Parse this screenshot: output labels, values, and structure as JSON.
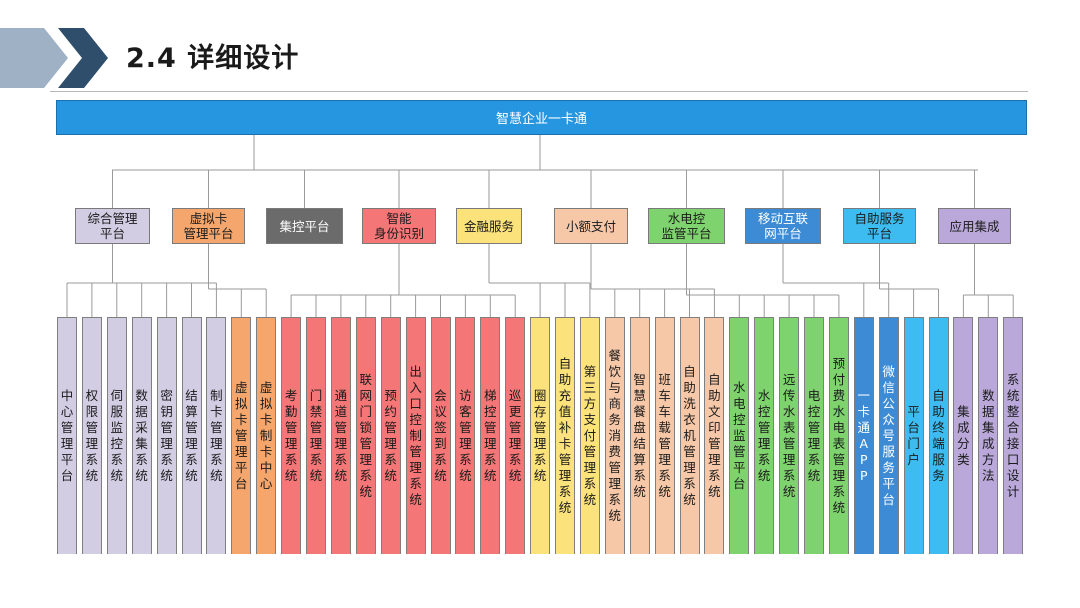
{
  "header": {
    "title": "2.4 详细设计"
  },
  "root": {
    "label": "智慧企业一卡通"
  },
  "colors": {
    "header_chevron_dark": "#2f4e6b",
    "header_chevron_light": "#9fb1c4",
    "root": "#2796e0",
    "lavender": "#d3cde4",
    "orange": "#f4a66d",
    "gray": "#6b6b6b",
    "red": "#f57676",
    "yellow": "#fbe27a",
    "peach": "#f7c8a8",
    "green": "#7fd36e",
    "steelblue": "#3c8bd4",
    "skyblue": "#3cbcf0",
    "purple": "#b9a8d9",
    "connector": "#9a9a9a"
  },
  "categories": [
    {
      "label": "综合管理\n平台",
      "color": "lavender"
    },
    {
      "label": "虚拟卡\n管理平台",
      "color": "orange"
    },
    {
      "label": "集控平台",
      "color": "gray"
    },
    {
      "label": "智能\n身份识别",
      "color": "red"
    },
    {
      "label": "金融服务",
      "color": "yellow"
    },
    {
      "label": "小额支付",
      "color": "peach"
    },
    {
      "label": "水电控\n监管平台",
      "color": "green"
    },
    {
      "label": "移动互联\n网平台",
      "color": "steelblue"
    },
    {
      "label": "自助服务\n平台",
      "color": "skyblue"
    },
    {
      "label": "应用集成",
      "color": "purple"
    }
  ],
  "leaves": [
    {
      "label": "中心管理平台",
      "color": "lavender"
    },
    {
      "label": "权限管理系统",
      "color": "lavender"
    },
    {
      "label": "伺服监控系统",
      "color": "lavender"
    },
    {
      "label": "数据采集系统",
      "color": "lavender"
    },
    {
      "label": "密钥管理系统",
      "color": "lavender"
    },
    {
      "label": "结算管理系统",
      "color": "lavender"
    },
    {
      "label": "制卡管理系统",
      "color": "lavender"
    },
    {
      "label": "虚拟卡管理平台",
      "color": "orange"
    },
    {
      "label": "虚拟卡制卡中心",
      "color": "orange"
    },
    {
      "label": "考勤管理系统",
      "color": "red"
    },
    {
      "label": "门禁管理系统",
      "color": "red"
    },
    {
      "label": "通道管理系统",
      "color": "red"
    },
    {
      "label": "联网门锁管理系统",
      "color": "red"
    },
    {
      "label": "预约管理系统",
      "color": "red"
    },
    {
      "label": "出入口控制管理系统",
      "color": "red"
    },
    {
      "label": "会议签到系统",
      "color": "red"
    },
    {
      "label": "访客管理系统",
      "color": "red"
    },
    {
      "label": "梯控管理系统",
      "color": "red"
    },
    {
      "label": "巡更管理系统",
      "color": "red"
    },
    {
      "label": "圈存管理系统",
      "color": "yellow"
    },
    {
      "label": "自助充值补卡管理系统",
      "color": "yellow"
    },
    {
      "label": "第三方支付管理系统",
      "color": "yellow"
    },
    {
      "label": "餐饮与商务消费管理系统",
      "color": "peach"
    },
    {
      "label": "智慧餐盘结算系统",
      "color": "peach"
    },
    {
      "label": "班车车载管理系统",
      "color": "peach"
    },
    {
      "label": "自助洗衣机管理系统",
      "color": "peach"
    },
    {
      "label": "自助文印管理系统",
      "color": "peach"
    },
    {
      "label": "水电控监管平台",
      "color": "green"
    },
    {
      "label": "水控管理系统",
      "color": "green"
    },
    {
      "label": "远传水表管理系统",
      "color": "green"
    },
    {
      "label": "电控管理系统",
      "color": "green"
    },
    {
      "label": "预付费水电表管理系统",
      "color": "green"
    },
    {
      "label": "一卡通APP",
      "color": "steelblue"
    },
    {
      "label": "微信公众号服务平台",
      "color": "steelblue"
    },
    {
      "label": "平台门户",
      "color": "skyblue"
    },
    {
      "label": "自助终端服务",
      "color": "skyblue"
    },
    {
      "label": "集成分类",
      "color": "purple"
    },
    {
      "label": "数据集成方法",
      "color": "purple"
    },
    {
      "label": "系统整合接口设计",
      "color": "purple"
    }
  ],
  "groups": [
    {
      "category": 0,
      "leaves": [
        0,
        1,
        2,
        3,
        4,
        5,
        6
      ]
    },
    {
      "category": 1,
      "leaves": [
        7,
        8
      ]
    },
    {
      "category": 3,
      "leaves": [
        9,
        10,
        11,
        12,
        13,
        14,
        15,
        16,
        17,
        18
      ]
    },
    {
      "category": 4,
      "leaves": [
        19,
        20,
        21
      ]
    },
    {
      "category": 5,
      "leaves": [
        22,
        23,
        24,
        25,
        26
      ]
    },
    {
      "category": 6,
      "leaves": [
        27,
        28,
        29,
        30,
        31
      ]
    },
    {
      "category": 7,
      "leaves": [
        32,
        33
      ]
    },
    {
      "category": 8,
      "leaves": [
        34,
        35
      ]
    },
    {
      "category": 9,
      "leaves": [
        36,
        37,
        38
      ]
    }
  ]
}
